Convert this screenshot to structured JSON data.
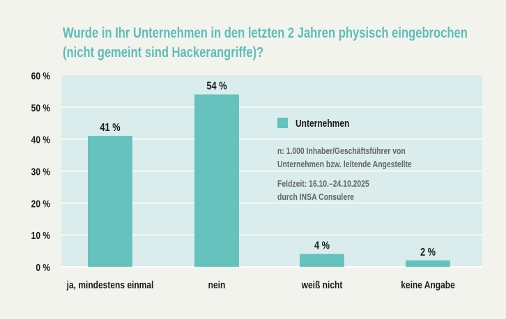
{
  "chart_data": {
    "type": "bar",
    "title": [
      "Wurde in Ihr Unternehmen in den letzten 2 Jahren physisch eingebrochen",
      "(nicht gemeint sind Hackerangriffe)?"
    ],
    "categories": [
      "ja, mindestens einmal",
      "nein",
      "weiß nicht",
      "keine Angabe"
    ],
    "series": [
      {
        "name": "Unternehmen",
        "values": [
          41,
          54,
          4,
          2
        ]
      }
    ],
    "data_labels": [
      "41 %",
      "54 %",
      "4 %",
      "2 %"
    ],
    "ylim": [
      0,
      60
    ],
    "yticks": [
      0,
      10,
      20,
      30,
      40,
      50,
      60
    ],
    "ytick_labels": [
      "0 %",
      "10 %",
      "20 %",
      "30 %",
      "40 %",
      "50 %",
      "60 %"
    ],
    "grid": true,
    "legend_placement": "right",
    "notes": [
      "n: 1.000 Inhaber/Geschäftsführer von",
      "Unternehmen bzw. leitende Angestellte",
      "Feldzeit: 16.10.–24.10.2025",
      "durch INSA Consulere"
    ],
    "colors": {
      "bar": "#66c2bd",
      "plot_bg": "#daecec",
      "page_bg": "#f3f3ee",
      "title": "#5dbdb7",
      "grid": "#ffffff"
    }
  }
}
